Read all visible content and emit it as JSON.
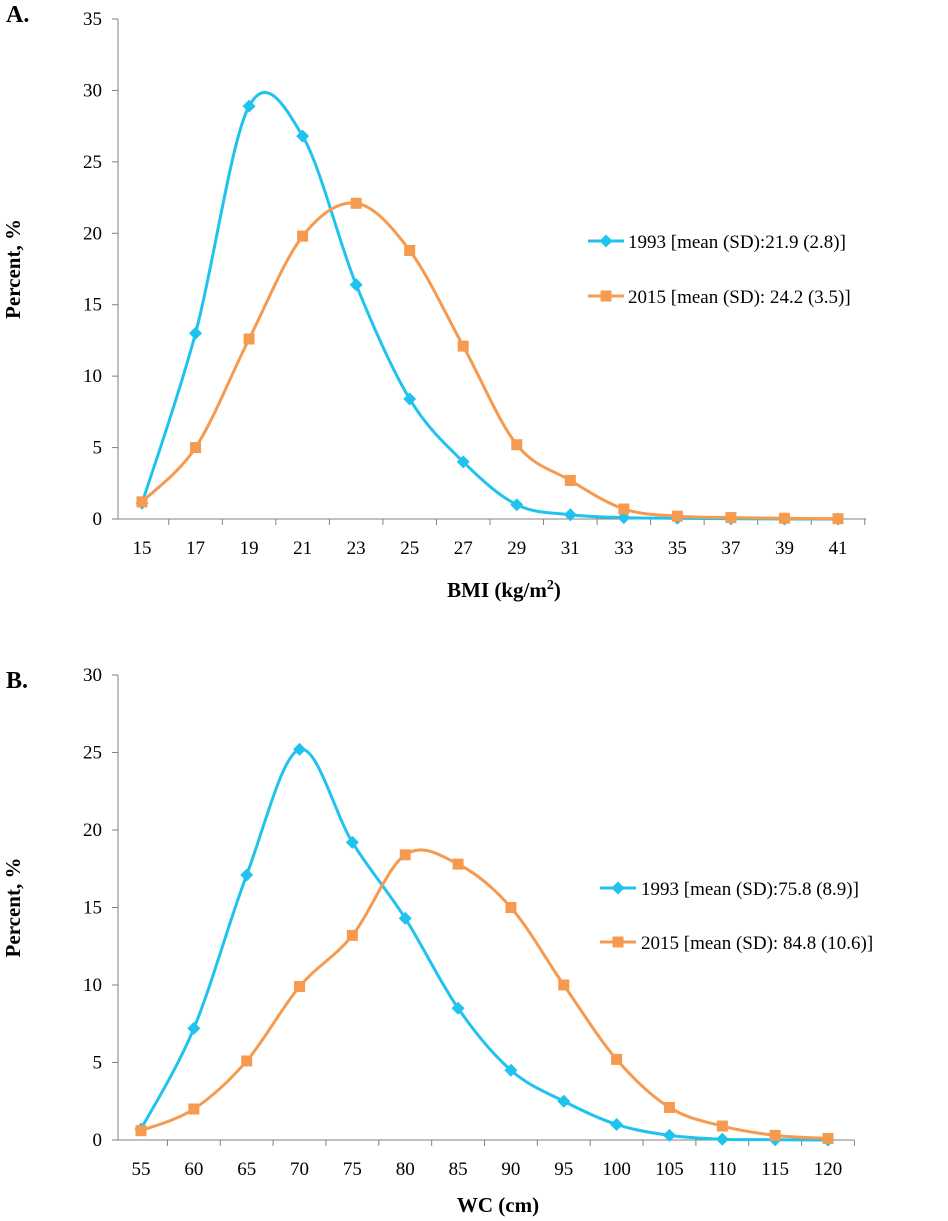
{
  "chart_data": [
    {
      "panel_label": "A.",
      "type": "line",
      "smooth": true,
      "xlabel": "BMI (kg/m",
      "xlabel_sup": "2",
      "xlabel_close": ")",
      "ylabel": "Percent, %",
      "categories": [
        "15",
        "17",
        "19",
        "21",
        "23",
        "25",
        "27",
        "29",
        "31",
        "33",
        "35",
        "37",
        "39",
        "41"
      ],
      "ylim": [
        0,
        35
      ],
      "yticks": [
        0,
        5,
        10,
        15,
        20,
        25,
        30,
        35
      ],
      "legend_position": "right",
      "series": [
        {
          "name": "1993 [mean (SD):21.9 (2.8)]",
          "color": "#1FC3EE",
          "marker": "diamond",
          "values": [
            1.1,
            13.0,
            28.9,
            26.8,
            16.4,
            8.4,
            4.0,
            1.0,
            0.3,
            0.1,
            0.05,
            0.02,
            0.0,
            0.0
          ]
        },
        {
          "name": "2015 [mean (SD): 24.2 (3.5)]",
          "color": "#F59A4F",
          "marker": "square",
          "values": [
            1.2,
            5.0,
            12.6,
            19.8,
            22.1,
            18.8,
            12.1,
            5.2,
            2.7,
            0.7,
            0.2,
            0.1,
            0.05,
            0.02
          ]
        }
      ]
    },
    {
      "panel_label": "B.",
      "type": "line",
      "smooth": true,
      "xlabel": "WC (cm)",
      "ylabel": "Percent, %",
      "categories": [
        "55",
        "60",
        "65",
        "70",
        "75",
        "80",
        "85",
        "90",
        "95",
        "100",
        "105",
        "110",
        "115",
        "120"
      ],
      "ylim": [
        0,
        30
      ],
      "yticks": [
        0,
        5,
        10,
        15,
        20,
        25,
        30
      ],
      "legend_position": "right",
      "series": [
        {
          "name": "1993 [mean (SD):75.8 (8.9)]",
          "color": "#1FC3EE",
          "marker": "diamond",
          "values": [
            0.7,
            7.2,
            17.1,
            25.2,
            19.2,
            14.3,
            8.5,
            4.5,
            2.5,
            1.0,
            0.3,
            0.05,
            0.02,
            0.0
          ]
        },
        {
          "name": "2015 [mean (SD): 84.8 (10.6)]",
          "color": "#F59A4F",
          "marker": "square",
          "values": [
            0.6,
            2.0,
            5.1,
            9.9,
            13.2,
            18.4,
            17.8,
            15.0,
            10.0,
            5.2,
            2.1,
            0.9,
            0.3,
            0.1
          ]
        }
      ]
    }
  ]
}
